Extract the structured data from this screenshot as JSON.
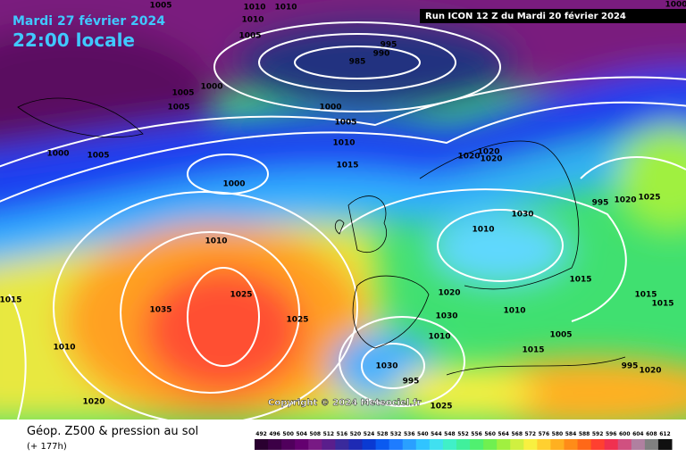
{
  "header": {
    "date": "Mardi 27 février 2024",
    "time": "22:00 locale",
    "run": "Run ICON 12 Z du Mardi 20 février 2024",
    "copyright": "Copyright © 2024 Meteociel.fr"
  },
  "footer": {
    "title": "Géop. Z500 & pression au sol",
    "lead": "(+ 177h)"
  },
  "legend": {
    "ticks": [
      492,
      496,
      500,
      504,
      508,
      512,
      516,
      520,
      524,
      528,
      532,
      536,
      540,
      544,
      548,
      552,
      556,
      560,
      564,
      568,
      572,
      576,
      580,
      584,
      588,
      592,
      596,
      600,
      604,
      608,
      612
    ],
    "colors": [
      "#2a0030",
      "#3c0046",
      "#50005c",
      "#640070",
      "#781a84",
      "#5a1e8c",
      "#3a2a9c",
      "#1e2ab4",
      "#0a3ad2",
      "#0a5af0",
      "#1e7cff",
      "#2aa0ff",
      "#30c4ff",
      "#40e0f0",
      "#40f0c8",
      "#40f09c",
      "#50f070",
      "#70f050",
      "#a0f040",
      "#d0f040",
      "#f8f040",
      "#ffd030",
      "#ffb020",
      "#ff8c18",
      "#ff6818",
      "#ff4030",
      "#f03050",
      "#d05080",
      "#b080a0",
      "#808080",
      "#101010"
    ]
  },
  "isobar_labels": [
    1005,
    1010,
    1010,
    1010,
    1005,
    995,
    990,
    985,
    1000,
    1005,
    1005,
    1000,
    1005,
    1010,
    1000,
    1005,
    1020,
    1020,
    1020,
    1015,
    1000,
    1020,
    1025,
    1030,
    1010,
    1010,
    1020,
    1015,
    1015,
    1015,
    1015,
    1025,
    1035,
    1025,
    1030,
    1010,
    1010,
    1005,
    1015,
    1010,
    1030,
    995,
    995,
    1020,
    1020,
    1025,
    1000,
    995
  ]
}
